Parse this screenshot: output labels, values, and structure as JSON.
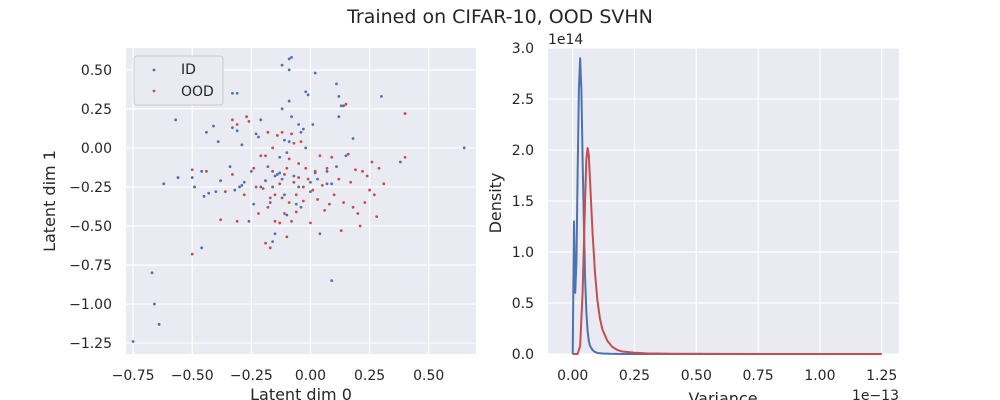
{
  "figure": {
    "title": "Trained on CIFAR-10, OOD SVHN"
  },
  "colors": {
    "id": "#4c72b0",
    "ood": "#c44e52",
    "panel_bg": "#eaeaf2",
    "grid": "#ffffff"
  },
  "chart_data": [
    {
      "type": "scatter",
      "xlabel": "Latent dim 0",
      "ylabel": "Latent dim 1",
      "xlim": [
        -0.78,
        0.7
      ],
      "ylim": [
        -1.32,
        0.64
      ],
      "xticks": [
        -0.75,
        -0.5,
        -0.25,
        0.0,
        0.25,
        0.5
      ],
      "xtick_labels": [
        "−0.75",
        "−0.50",
        "−0.25",
        "0.00",
        "0.25",
        "0.50"
      ],
      "yticks": [
        0.5,
        0.25,
        0.0,
        -0.25,
        -0.5,
        -0.75,
        -1.0,
        -1.25
      ],
      "ytick_labels": [
        "0.50",
        "0.25",
        "0.00",
        "−0.25",
        "−0.50",
        "−0.75",
        "−1.00",
        "−1.25"
      ],
      "grid": true,
      "legend": {
        "placement": "upper-left",
        "entries": [
          "ID",
          "OOD"
        ]
      },
      "series": [
        {
          "name": "ID",
          "points": [
            [
              -0.75,
              -1.24
            ],
            [
              -0.67,
              -0.8
            ],
            [
              -0.66,
              -1.0
            ],
            [
              -0.64,
              -1.13
            ],
            [
              -0.62,
              -0.23
            ],
            [
              -0.57,
              0.18
            ],
            [
              -0.56,
              -0.19
            ],
            [
              -0.5,
              -0.19
            ],
            [
              -0.49,
              -0.25
            ],
            [
              -0.46,
              -0.64
            ],
            [
              -0.46,
              -0.15
            ],
            [
              -0.45,
              -0.31
            ],
            [
              -0.44,
              0.1
            ],
            [
              -0.43,
              -0.29
            ],
            [
              -0.41,
              0.14
            ],
            [
              -0.4,
              -0.28
            ],
            [
              -0.39,
              0.04
            ],
            [
              -0.38,
              -0.21
            ],
            [
              -0.34,
              -0.12
            ],
            [
              -0.33,
              0.35
            ],
            [
              -0.33,
              0.13
            ],
            [
              -0.32,
              -0.27
            ],
            [
              -0.31,
              0.35
            ],
            [
              -0.31,
              0.11
            ],
            [
              -0.3,
              -0.25
            ],
            [
              -0.29,
              -0.24
            ],
            [
              -0.29,
              0.02
            ],
            [
              -0.28,
              -0.22
            ],
            [
              -0.26,
              -0.47
            ],
            [
              -0.25,
              -0.15
            ],
            [
              -0.24,
              -0.36
            ],
            [
              -0.23,
              0.09
            ],
            [
              -0.22,
              0.07
            ],
            [
              -0.21,
              0.18
            ],
            [
              -0.21,
              -0.25
            ],
            [
              -0.19,
              -0.21
            ],
            [
              -0.18,
              -0.12
            ],
            [
              -0.17,
              -0.35
            ],
            [
              -0.16,
              -0.6
            ],
            [
              -0.16,
              -0.25
            ],
            [
              -0.15,
              -0.55
            ],
            [
              -0.15,
              -0.18
            ],
            [
              -0.14,
              -0.17
            ],
            [
              -0.13,
              -0.06
            ],
            [
              -0.13,
              -0.16
            ],
            [
              -0.12,
              0.53
            ],
            [
              -0.12,
              0.25
            ],
            [
              -0.12,
              -0.2
            ],
            [
              -0.11,
              -0.3
            ],
            [
              -0.11,
              0.05
            ],
            [
              -0.1,
              -0.43
            ],
            [
              -0.1,
              -0.03
            ],
            [
              -0.09,
              0.57
            ],
            [
              -0.09,
              0.5
            ],
            [
              -0.09,
              0.3
            ],
            [
              -0.09,
              0.04
            ],
            [
              -0.08,
              0.58
            ],
            [
              -0.08,
              0.2
            ],
            [
              -0.07,
              -0.18
            ],
            [
              -0.06,
              -0.36
            ],
            [
              -0.05,
              0.15
            ],
            [
              -0.05,
              -0.25
            ],
            [
              -0.04,
              -0.38
            ],
            [
              -0.04,
              0.1
            ],
            [
              -0.03,
              0.12
            ],
            [
              -0.02,
              0.36
            ],
            [
              -0.02,
              0.0
            ],
            [
              -0.01,
              0.34
            ],
            [
              0.0,
              -0.28
            ],
            [
              0.0,
              -0.22
            ],
            [
              0.01,
              0.15
            ],
            [
              0.02,
              0.48
            ],
            [
              0.02,
              -0.16
            ],
            [
              0.03,
              -0.2
            ],
            [
              0.04,
              -0.55
            ],
            [
              0.07,
              -0.23
            ],
            [
              0.07,
              -0.15
            ],
            [
              0.09,
              -0.85
            ],
            [
              0.09,
              -0.23
            ],
            [
              0.11,
              0.41
            ],
            [
              0.11,
              -0.12
            ],
            [
              0.12,
              0.33
            ],
            [
              0.12,
              0.2
            ],
            [
              0.13,
              0.27
            ],
            [
              0.14,
              0.27
            ],
            [
              0.15,
              -0.05
            ],
            [
              0.18,
              0.06
            ],
            [
              0.3,
              0.33
            ],
            [
              0.38,
              -0.09
            ],
            [
              0.65,
              0.0
            ]
          ]
        },
        {
          "name": "OOD",
          "points": [
            [
              -0.5,
              -0.68
            ],
            [
              -0.5,
              -0.14
            ],
            [
              -0.44,
              -0.15
            ],
            [
              -0.38,
              -0.46
            ],
            [
              -0.36,
              -0.28
            ],
            [
              -0.33,
              0.18
            ],
            [
              -0.33,
              -0.17
            ],
            [
              -0.31,
              -0.47
            ],
            [
              -0.31,
              0.15
            ],
            [
              -0.28,
              -0.3
            ],
            [
              -0.27,
              0.2
            ],
            [
              -0.26,
              0.17
            ],
            [
              -0.24,
              -0.13
            ],
            [
              -0.23,
              -0.25
            ],
            [
              -0.22,
              -0.42
            ],
            [
              -0.21,
              -0.05
            ],
            [
              -0.2,
              -0.26
            ],
            [
              -0.19,
              -0.61
            ],
            [
              -0.19,
              -0.05
            ],
            [
              -0.18,
              -0.38
            ],
            [
              -0.18,
              0.1
            ],
            [
              -0.17,
              -0.64
            ],
            [
              -0.17,
              -0.32
            ],
            [
              -0.16,
              -0.15
            ],
            [
              -0.16,
              0.0
            ],
            [
              -0.15,
              -0.3
            ],
            [
              -0.15,
              -0.47
            ],
            [
              -0.14,
              0.08
            ],
            [
              -0.13,
              -0.23
            ],
            [
              -0.13,
              -0.48
            ],
            [
              -0.12,
              -0.32
            ],
            [
              -0.12,
              0.1
            ],
            [
              -0.11,
              -0.42
            ],
            [
              -0.11,
              -0.17
            ],
            [
              -0.1,
              -0.13
            ],
            [
              -0.1,
              -0.57
            ],
            [
              -0.09,
              -0.35
            ],
            [
              -0.09,
              -0.07
            ],
            [
              -0.08,
              0.09
            ],
            [
              -0.08,
              -0.47
            ],
            [
              -0.07,
              -0.22
            ],
            [
              -0.07,
              0.03
            ],
            [
              -0.06,
              -0.3
            ],
            [
              -0.06,
              -0.41
            ],
            [
              -0.05,
              -0.1
            ],
            [
              -0.05,
              -0.19
            ],
            [
              -0.04,
              0.04
            ],
            [
              -0.03,
              -0.25
            ],
            [
              -0.03,
              -0.34
            ],
            [
              -0.02,
              -0.13
            ],
            [
              -0.01,
              -0.2
            ],
            [
              0.0,
              -0.48
            ],
            [
              0.01,
              -0.27
            ],
            [
              0.02,
              -0.15
            ],
            [
              0.03,
              -0.33
            ],
            [
              0.04,
              -0.05
            ],
            [
              0.05,
              -0.24
            ],
            [
              0.06,
              -0.4
            ],
            [
              0.07,
              -0.13
            ],
            [
              0.08,
              -0.36
            ],
            [
              0.09,
              -0.06
            ],
            [
              0.1,
              -0.3
            ],
            [
              0.12,
              -0.2
            ],
            [
              0.13,
              -0.53
            ],
            [
              0.14,
              -0.35
            ],
            [
              0.15,
              0.28
            ],
            [
              0.16,
              -0.04
            ],
            [
              0.17,
              -0.22
            ],
            [
              0.18,
              -0.38
            ],
            [
              0.19,
              -0.14
            ],
            [
              0.2,
              -0.42
            ],
            [
              0.21,
              -0.5
            ],
            [
              0.22,
              -0.15
            ],
            [
              0.23,
              -0.35
            ],
            [
              0.24,
              -0.18
            ],
            [
              0.25,
              -0.27
            ],
            [
              0.26,
              -0.09
            ],
            [
              0.27,
              -0.3
            ],
            [
              0.28,
              -0.44
            ],
            [
              0.29,
              -0.13
            ],
            [
              0.31,
              -0.23
            ],
            [
              0.4,
              0.22
            ],
            [
              0.4,
              -0.06
            ]
          ]
        }
      ]
    },
    {
      "type": "line",
      "xlabel": "Variance",
      "ylabel": "Density",
      "x_scale_label": "1e−13",
      "y_scale_label": "1e14",
      "xlim": [
        -0.1,
        1.32
      ],
      "ylim": [
        0,
        3.0
      ],
      "xticks": [
        0.0,
        0.25,
        0.5,
        0.75,
        1.0,
        1.25
      ],
      "xtick_labels": [
        "0.00",
        "0.25",
        "0.50",
        "0.75",
        "1.00",
        "1.25"
      ],
      "yticks": [
        0.0,
        0.5,
        1.0,
        1.5,
        2.0,
        2.5,
        3.0
      ],
      "ytick_labels": [
        "0.0",
        "0.5",
        "1.0",
        "1.5",
        "2.0",
        "2.5",
        "3.0"
      ],
      "grid": true,
      "series": [
        {
          "name": "ID",
          "x": [
            0.0,
            0.005,
            0.01,
            0.015,
            0.02,
            0.025,
            0.03,
            0.035,
            0.04,
            0.045,
            0.05,
            0.055,
            0.06,
            0.065,
            0.07,
            0.08,
            0.09,
            0.1,
            0.12,
            0.15,
            0.2,
            0.3,
            0.5,
            0.8,
            1.25
          ],
          "y": [
            0.0,
            1.3,
            0.6,
            0.9,
            1.8,
            2.6,
            2.9,
            2.6,
            1.9,
            1.3,
            0.75,
            0.42,
            0.23,
            0.13,
            0.08,
            0.04,
            0.02,
            0.01,
            0.005,
            0.002,
            0.0,
            0.0,
            0.0,
            0.0,
            0.0
          ]
        },
        {
          "name": "OOD",
          "x": [
            0.0,
            0.02,
            0.03,
            0.04,
            0.05,
            0.055,
            0.06,
            0.065,
            0.07,
            0.08,
            0.09,
            0.1,
            0.11,
            0.12,
            0.14,
            0.16,
            0.18,
            0.2,
            0.25,
            0.3,
            0.4,
            0.6,
            0.9,
            1.25
          ],
          "y": [
            0.0,
            0.0,
            0.08,
            0.6,
            1.5,
            1.9,
            2.02,
            1.95,
            1.7,
            1.2,
            0.8,
            0.52,
            0.35,
            0.24,
            0.13,
            0.07,
            0.04,
            0.025,
            0.012,
            0.006,
            0.003,
            0.001,
            0.0,
            0.0
          ]
        }
      ]
    }
  ]
}
